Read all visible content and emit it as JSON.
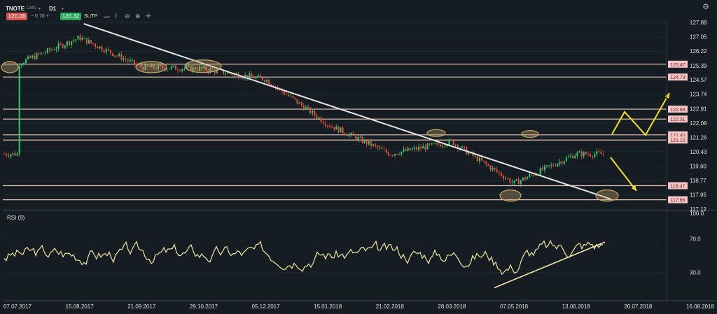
{
  "toolbar": {
    "symbol": "TNOTE",
    "symbol_sub": "CMS",
    "symbol_dd": "▾",
    "timeframe": "D1",
    "timeframe_dd": "▾",
    "sell_price": "120.28",
    "spread": "− 0.70  +",
    "buy_price": "120.32",
    "sltp": "SL/TP",
    "icons": [
      "line-chart-icon",
      "indicator-icon",
      "zoom-out-icon",
      "zoom-in-icon",
      "crosshair-icon",
      "gear-icon"
    ]
  },
  "colors": {
    "bg": "#151c22",
    "up": "#2ecc71",
    "down": "#e74c3c",
    "level": "#e8c4b4",
    "trend": "#e6e6e6",
    "ellipse": "#c9a56a",
    "arrow": "#f1e21b",
    "rsi": "#f3e5a5"
  },
  "chart_data": [
    {
      "type": "candlestick",
      "instrument": "TNOTE",
      "timeframe": "D1",
      "ylim": [
        117.12,
        127.88
      ],
      "y_ticks": [
        "127.88",
        "127.05",
        "126.22",
        "125.39",
        "124.57",
        "123.74",
        "122.91",
        "122.08",
        "121.26",
        "120.43",
        "119.60",
        "118.77",
        "117.95",
        "117.12"
      ],
      "x_ticks": [
        "07.07.2017",
        "15.08.2017",
        "21.09.2017",
        "29.10.2017",
        "05.12.2017",
        "15.01.2018",
        "21.02.2018",
        "28.03.2018",
        "07.05.2018",
        "13.06.2018",
        "20.07.2018",
        "16.08.2018"
      ],
      "close_path": {
        "dates": [
          "07.07.2017",
          "15.08.2017",
          "21.09.2017",
          "29.10.2017",
          "05.12.2017",
          "15.01.2018",
          "21.02.2018",
          "28.03.2018",
          "07.05.2018",
          "13.06.2018"
        ],
        "close": [
          125.5,
          127.0,
          125.3,
          125.2,
          124.6,
          122.0,
          120.3,
          121.0,
          118.6,
          120.3
        ]
      },
      "last_close": 120.3,
      "horizontal_levels": [
        {
          "value": 125.47,
          "label": "125.47"
        },
        {
          "value": 124.73,
          "label": "124.73"
        },
        {
          "value": 122.88,
          "label": "122.88"
        },
        {
          "value": 122.31,
          "label": "122.31"
        },
        {
          "value": 121.4,
          "label": "121.40"
        },
        {
          "value": 121.1,
          "label": "121.10"
        },
        {
          "value": 118.47,
          "label": "118.47"
        },
        {
          "value": 117.66,
          "label": "117.66"
        }
      ],
      "trendline": {
        "from": {
          "x": "15.08.2017",
          "y": 127.8
        },
        "to": {
          "x": "07.07.2018",
          "y": 117.7
        }
      },
      "highlight_ellipses": [
        "07.07.2017",
        "21.09.2017",
        "29.10.2017",
        "28.03.2018",
        "07.05.2018",
        "13.06.2018",
        "07.07.2018"
      ],
      "scenario_arrows": [
        "up-down-up (bullish)",
        "down (bearish)"
      ]
    },
    {
      "type": "line",
      "name": "RSI (9)",
      "ylim": [
        0,
        100
      ],
      "y_ticks": [
        "100.0",
        "70.0",
        "30.0"
      ],
      "trendline": "rising support from May to June 2018"
    }
  ]
}
